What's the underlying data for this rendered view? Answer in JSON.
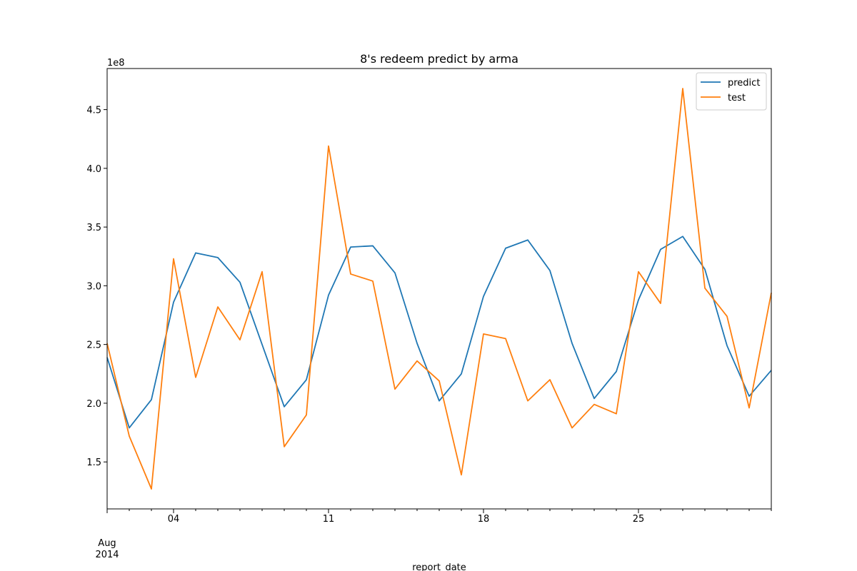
{
  "chart_data": {
    "type": "line",
    "title": "8's redeem predict by arma",
    "xlabel": "report_date",
    "ylabel": "",
    "y_offset_label": "1e8",
    "x_month_label": "Aug",
    "x_year_label": "2014",
    "x": [
      "2014-08-01",
      "2014-08-02",
      "2014-08-03",
      "2014-08-04",
      "2014-08-05",
      "2014-08-06",
      "2014-08-07",
      "2014-08-08",
      "2014-08-09",
      "2014-08-10",
      "2014-08-11",
      "2014-08-12",
      "2014-08-13",
      "2014-08-14",
      "2014-08-15",
      "2014-08-16",
      "2014-08-17",
      "2014-08-18",
      "2014-08-19",
      "2014-08-20",
      "2014-08-21",
      "2014-08-22",
      "2014-08-23",
      "2014-08-24",
      "2014-08-25",
      "2014-08-26",
      "2014-08-27",
      "2014-08-28",
      "2014-08-29",
      "2014-08-30",
      "2014-08-31"
    ],
    "x_range": [
      "2014-08-01",
      "2014-08-31"
    ],
    "x_ticks": [
      {
        "date": "2014-08-04",
        "label": "04"
      },
      {
        "date": "2014-08-11",
        "label": "11"
      },
      {
        "date": "2014-08-18",
        "label": "18"
      },
      {
        "date": "2014-08-25",
        "label": "25"
      }
    ],
    "y_scale_factor": 100000000,
    "ylim": [
      1.1,
      4.85
    ],
    "y_ticks": [
      1.5,
      2.0,
      2.5,
      3.0,
      3.5,
      4.0,
      4.5
    ],
    "y_tick_labels": [
      "1.5",
      "2.0",
      "2.5",
      "3.0",
      "3.5",
      "4.0",
      "4.5"
    ],
    "grid": false,
    "legend_position": "top-right",
    "series": [
      {
        "name": "predict",
        "color": "#1f77b4",
        "values": [
          2.39,
          1.79,
          2.03,
          2.86,
          3.28,
          3.24,
          3.03,
          2.5,
          1.97,
          2.2,
          2.92,
          3.33,
          3.34,
          3.11,
          2.51,
          2.02,
          2.25,
          2.91,
          3.32,
          3.39,
          3.13,
          2.51,
          2.04,
          2.27,
          2.88,
          3.31,
          3.42,
          3.14,
          2.49,
          2.06,
          2.28
        ]
      },
      {
        "name": "test",
        "color": "#ff7f0e",
        "values": [
          2.51,
          1.72,
          1.27,
          3.23,
          2.22,
          2.82,
          2.54,
          3.12,
          1.63,
          1.9,
          4.19,
          3.1,
          3.04,
          2.12,
          2.36,
          2.19,
          1.39,
          2.59,
          2.55,
          2.02,
          2.2,
          1.79,
          1.99,
          1.91,
          3.12,
          2.85,
          4.68,
          2.98,
          2.74,
          1.96,
          2.94
        ]
      }
    ]
  }
}
